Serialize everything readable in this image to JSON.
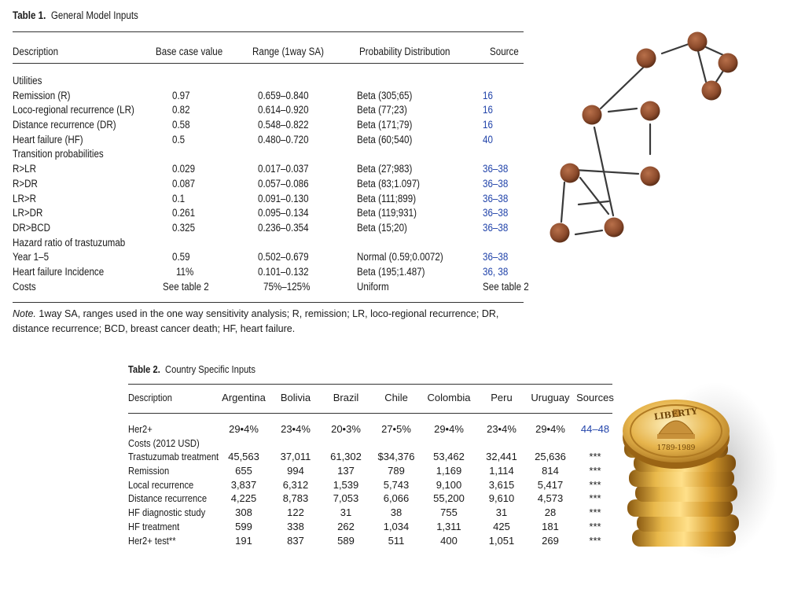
{
  "table1": {
    "label": "Table 1.",
    "title": "General Model Inputs",
    "headers": [
      "Description",
      "Base case value",
      "Range (1way SA)",
      "Probability Distribution",
      "Source"
    ],
    "rows": [
      {
        "c": [
          "Utilities",
          "",
          "",
          "",
          ""
        ]
      },
      {
        "c": [
          "Remission (R)",
          "0.97",
          "0.659–0.840",
          "Beta (305;65)",
          "16"
        ]
      },
      {
        "c": [
          "Loco-regional recurrence (LR)",
          "0.82",
          "0.614–0.920",
          "Beta (77;23)",
          "16"
        ]
      },
      {
        "c": [
          "Distance recurrence (DR)",
          "0.58",
          "0.548–0.822",
          "Beta (171;79)",
          "16"
        ]
      },
      {
        "c": [
          "Heart failure (HF)",
          "0.5",
          "0.480–0.720",
          "Beta (60;540)",
          "40"
        ]
      },
      {
        "c": [
          "Transition probabilities",
          "",
          "",
          "",
          ""
        ]
      },
      {
        "c": [
          "R>LR",
          "0.029",
          "0.017–0.037",
          "Beta (27;983)",
          "36–38"
        ]
      },
      {
        "c": [
          "R>DR",
          "0.087",
          "0.057–0.086",
          "Beta (83;1.097)",
          "36–38"
        ]
      },
      {
        "c": [
          "LR>R",
          "0.1",
          "0.091–0.130",
          "Beta (111;899)",
          "36–38"
        ]
      },
      {
        "c": [
          "LR>DR",
          "0.261",
          "0.095–0.134",
          "Beta (119;931)",
          "36–38"
        ]
      },
      {
        "c": [
          "DR>BCD",
          "0.325",
          "0.236–0.354",
          "Beta (15;20)",
          "36–38"
        ]
      },
      {
        "c": [
          "Hazard ratio of trastuzumab",
          "",
          "",
          "",
          ""
        ]
      },
      {
        "c": [
          "Year 1–5",
          "0.59",
          "0.502–0.679",
          "Normal (0.59;0.0072)",
          "36–38"
        ]
      },
      {
        "c": [
          "Heart failure Incidence",
          "11%",
          "0.101–0.132",
          "Beta (195;1.487)",
          "36, 38"
        ]
      },
      {
        "c": [
          "Costs",
          "See table 2",
          "75%–125%",
          "Uniform",
          "See table 2"
        ]
      }
    ],
    "note_label": "Note.",
    "note_text": " 1way SA, ranges used in the one way sensitivity analysis; R, remission; LR, loco-regional recurrence; DR, distance recurrence; BCD, breast cancer death; HF, heart failure."
  },
  "table2": {
    "label": "Table 2.",
    "title": "Country Specific Inputs",
    "headers": [
      "Description",
      "Argentina",
      "Bolivia",
      "Brazil",
      "Chile",
      "Colombia",
      "Peru",
      "Uruguay",
      "Sources"
    ],
    "rows": [
      {
        "c": [
          "Her2+",
          "29•4%",
          "23•4%",
          "20•3%",
          "27•5%",
          "29•4%",
          "23•4%",
          "29•4%",
          "44–48"
        ]
      },
      {
        "c": [
          "Costs (2012 USD)",
          "",
          "",
          "",
          "",
          "",
          "",
          "",
          ""
        ]
      },
      {
        "c": [
          "Trastuzumab treatment",
          "45,563",
          "37,011",
          "61,302",
          "$34,376",
          "53,462",
          "32,441",
          "25,636",
          "***"
        ]
      },
      {
        "c": [
          "Remission",
          "655",
          "994",
          "137",
          "789",
          "1,169",
          "1,114",
          "814",
          "***"
        ]
      },
      {
        "c": [
          "Local recurrence",
          "3,837",
          "6,312",
          "1,539",
          "5,743",
          "9,100",
          "3,615",
          "5,417",
          "***"
        ]
      },
      {
        "c": [
          "Distance recurrence",
          "4,225",
          "8,783",
          "7,053",
          "6,066",
          "55,200",
          "9,610",
          "4,573",
          "***"
        ]
      },
      {
        "c": [
          "HF diagnostic study",
          "308",
          "122",
          "31",
          "38",
          "755",
          "31",
          "28",
          "***"
        ]
      },
      {
        "c": [
          "HF treatment",
          "599",
          "338",
          "262",
          "1,034",
          "1,311",
          "425",
          "181",
          "***"
        ]
      },
      {
        "c": [
          "Her2+ test**",
          "191",
          "837",
          "589",
          "511",
          "400",
          "1,051",
          "269",
          "***"
        ]
      }
    ]
  },
  "coin": {
    "word": "LIBERTY",
    "years": "1789-1989"
  },
  "colors": {
    "link_blue": "#2244aa",
    "node": "#8b4a2b",
    "gold": "#d9a437"
  },
  "icons": [
    "network-graph-illustration",
    "gold-coin-stack-illustration"
  ]
}
